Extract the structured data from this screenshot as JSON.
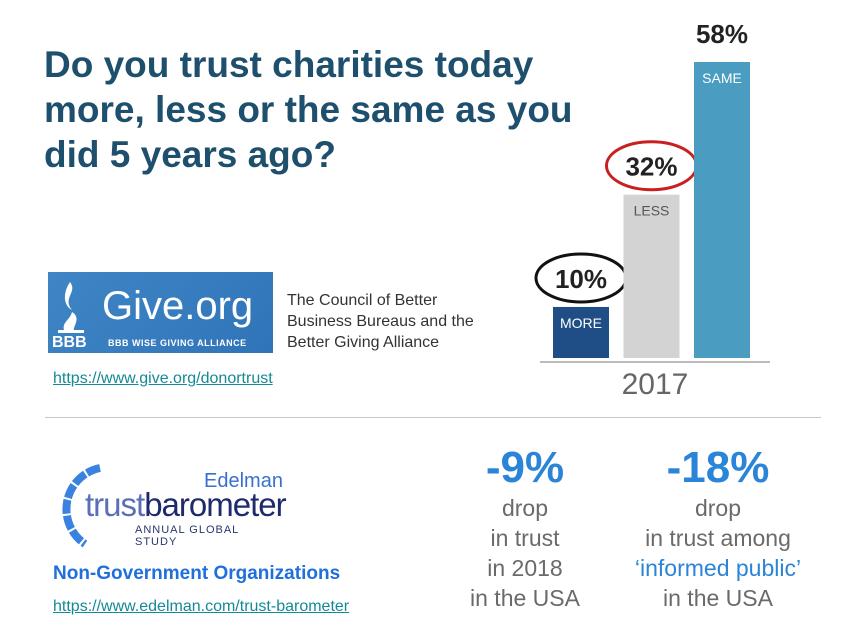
{
  "title": "Do you trust charities today more, less or the same as you did 5 years ago?",
  "chart_data": {
    "type": "bar",
    "categories": [
      "MORE",
      "LESS",
      "SAME"
    ],
    "values": [
      10,
      32,
      58
    ],
    "value_labels": [
      "10%",
      "32%",
      "58%"
    ],
    "xlabel": "2017",
    "colors": [
      "#1f4e86",
      "#d3d3d3",
      "#4a9cc0"
    ],
    "highlighted": [
      {
        "category": "MORE",
        "circle_color": "#111111"
      },
      {
        "category": "LESS",
        "circle_color": "#c8201f"
      }
    ],
    "ylim": [
      0,
      58
    ]
  },
  "give": {
    "logo_text": "Give.org",
    "logo_sub": "BBB WISE GIVING ALLIANCE",
    "logo_bbb": "BBB",
    "description_lines": [
      "The Council of Better",
      "Business Bureaus and the",
      "Better Giving Alliance"
    ],
    "link": "https://www.give.org/donortrust"
  },
  "edelman": {
    "logo_brand": "Edelman",
    "logo_trust": "trust",
    "logo_barometer": "barometer",
    "logo_sub": "ANNUAL GLOBAL STUDY",
    "heading": "Non-Government Organizations",
    "link": "https://www.edelman.com/trust-barometer"
  },
  "stats": [
    {
      "value": "-9%",
      "lines": [
        "drop",
        "in trust",
        "in 2018",
        "in the USA"
      ]
    },
    {
      "value": "-18%",
      "lines": [
        "drop",
        "in trust among",
        "‘informed public’",
        "in the USA"
      ]
    }
  ]
}
